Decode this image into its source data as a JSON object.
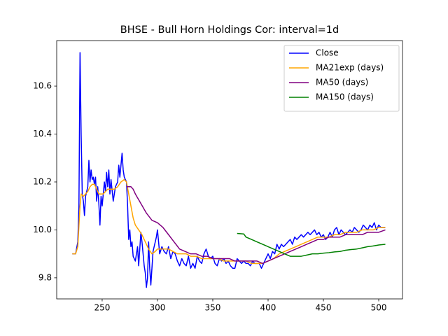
{
  "chart_data": {
    "type": "line",
    "title": "BHSE - Bull Horn Holdings Cor: interval=1d",
    "xlim": [
      208.9,
      521.5
    ],
    "ylim": [
      9.712,
      10.79
    ],
    "xticks": [
      250,
      300,
      350,
      400,
      450,
      500
    ],
    "yticks": [
      9.8,
      {
        "value": 10,
        "label": "10.0"
      },
      10.2,
      10.4,
      10.6
    ],
    "legend": "upper right",
    "series": [
      {
        "name": "Close",
        "color": "#0000ff",
        "x": [
          223,
          226,
          228,
          229,
          230,
          231,
          232,
          233,
          234,
          235,
          237,
          238,
          239,
          240,
          241,
          242,
          243,
          244,
          245,
          246,
          247,
          248,
          249,
          250,
          252,
          253,
          254,
          255,
          256,
          257,
          258,
          260,
          262,
          264,
          265,
          266,
          268,
          269,
          270,
          272,
          273,
          274,
          275,
          276,
          277,
          278,
          280,
          282,
          283,
          285,
          286,
          287,
          288,
          289,
          290,
          291,
          292,
          293,
          294,
          295,
          296,
          297,
          298,
          299,
          300,
          301,
          302,
          304,
          306,
          308,
          310,
          312,
          314,
          316,
          318,
          320,
          322,
          324,
          326,
          328,
          330,
          332,
          334,
          336,
          338,
          340,
          342,
          344,
          346,
          348,
          350,
          352,
          354,
          356,
          358,
          360,
          362,
          364,
          366,
          368,
          370,
          372,
          374,
          376,
          378,
          380,
          382,
          384,
          386,
          388,
          390,
          392,
          394,
          396,
          398,
          400,
          402,
          404,
          406,
          408,
          410,
          412,
          414,
          416,
          418,
          420,
          422,
          424,
          426,
          428,
          430,
          432,
          434,
          436,
          438,
          440,
          442,
          444,
          446,
          448,
          450,
          452,
          454,
          456,
          458,
          460,
          462,
          464,
          466,
          468,
          470,
          472,
          474,
          476,
          478,
          480,
          482,
          484,
          486,
          488,
          490,
          492,
          494,
          496,
          498,
          500,
          502,
          504,
          506
        ],
        "values": [
          9.9,
          9.9,
          9.95,
          10.1,
          10.74,
          10.4,
          10.15,
          10.12,
          10.06,
          10.14,
          10.18,
          10.29,
          10.2,
          10.25,
          10.21,
          10.22,
          10.19,
          10.22,
          10.12,
          10.18,
          10.11,
          10.02,
          10.14,
          10.1,
          10.2,
          10.16,
          10.24,
          10.18,
          10.25,
          10.15,
          10.21,
          10.12,
          10.18,
          10.2,
          10.27,
          10.22,
          10.32,
          10.25,
          10.22,
          10.2,
          10.1,
          9.96,
          10.0,
          9.93,
          9.95,
          9.89,
          9.87,
          9.93,
          9.85,
          9.99,
          9.95,
          9.9,
          9.85,
          9.82,
          9.76,
          9.8,
          9.95,
          9.84,
          9.77,
          9.84,
          9.91,
          9.93,
          9.95,
          9.97,
          10.0,
          9.95,
          9.9,
          9.93,
          9.91,
          9.9,
          9.93,
          9.88,
          9.91,
          9.9,
          9.87,
          9.85,
          9.88,
          9.86,
          9.85,
          9.89,
          9.84,
          9.86,
          9.84,
          9.89,
          9.87,
          9.86,
          9.9,
          9.92,
          9.89,
          9.88,
          9.89,
          9.86,
          9.85,
          9.88,
          9.87,
          9.88,
          9.86,
          9.87,
          9.85,
          9.84,
          9.84,
          9.88,
          9.87,
          9.86,
          9.87,
          9.86,
          9.86,
          9.85,
          9.87,
          9.86,
          9.86,
          9.86,
          9.84,
          9.86,
          9.88,
          9.9,
          9.88,
          9.91,
          9.9,
          9.94,
          9.92,
          9.94,
          9.93,
          9.94,
          9.95,
          9.96,
          9.94,
          9.97,
          9.96,
          9.97,
          9.98,
          9.97,
          9.98,
          9.99,
          9.98,
          9.99,
          10.0,
          9.98,
          9.99,
          9.97,
          9.98,
          9.96,
          9.97,
          9.99,
          9.97,
          10.0,
          10.01,
          9.98,
          10.0,
          9.99,
          9.98,
          9.99,
          10.0,
          9.99,
          10.01,
          10.0,
          9.99,
          10.0,
          10.02,
          10.01,
          10.0,
          10.02,
          10.01,
          10.03,
          10.0,
          10.02,
          10.01,
          10.01,
          10.01
        ]
      },
      {
        "name": "MA21exp (days)",
        "color": "#ffa500",
        "x": [
          223,
          226,
          228,
          230,
          231,
          233,
          235,
          237,
          239,
          241,
          243,
          245,
          247,
          249,
          251,
          253,
          255,
          258,
          261,
          264,
          267,
          270,
          272,
          274,
          276,
          278,
          280,
          283,
          286,
          289,
          292,
          295,
          298,
          300,
          303,
          306,
          310,
          314,
          318,
          322,
          326,
          330,
          335,
          340,
          345,
          350,
          355,
          360,
          365,
          370,
          375,
          380,
          385,
          390,
          395,
          400,
          405,
          410,
          415,
          420,
          425,
          430,
          435,
          440,
          445,
          450,
          455,
          460,
          465,
          470,
          475,
          480,
          485,
          490,
          495,
          500,
          506
        ],
        "values": [
          9.9,
          9.9,
          9.93,
          10.1,
          10.15,
          10.14,
          10.15,
          10.16,
          10.18,
          10.19,
          10.19,
          10.17,
          10.15,
          10.15,
          10.15,
          10.16,
          10.17,
          10.17,
          10.17,
          10.18,
          10.2,
          10.21,
          10.2,
          10.15,
          10.1,
          10.05,
          10.02,
          10.0,
          9.98,
          9.95,
          9.92,
          9.9,
          9.91,
          9.92,
          9.92,
          9.92,
          9.92,
          9.91,
          9.9,
          9.9,
          9.9,
          9.89,
          9.89,
          9.88,
          9.88,
          9.88,
          9.88,
          9.87,
          9.87,
          9.87,
          9.87,
          9.87,
          9.86,
          9.86,
          9.86,
          9.87,
          9.88,
          9.9,
          9.91,
          9.92,
          9.93,
          9.94,
          9.95,
          9.96,
          9.97,
          9.97,
          9.97,
          9.98,
          9.98,
          9.99,
          9.99,
          9.99,
          10.0,
          10.0,
          10.0,
          10.01,
          10.01
        ]
      },
      {
        "name": "MA50 (days)",
        "color": "#800080",
        "x": [
          272,
          276,
          278,
          280,
          285,
          290,
          295,
          300,
          305,
          310,
          315,
          320,
          325,
          330,
          335,
          340,
          345,
          350,
          355,
          360,
          365,
          370,
          375,
          380,
          385,
          390,
          395,
          400,
          405,
          410,
          415,
          420,
          425,
          430,
          435,
          440,
          445,
          450,
          455,
          460,
          465,
          470,
          475,
          480,
          485,
          490,
          495,
          500,
          506
        ],
        "values": [
          10.18,
          10.18,
          10.17,
          10.15,
          10.11,
          10.07,
          10.04,
          10.03,
          10.01,
          9.98,
          9.95,
          9.92,
          9.91,
          9.9,
          9.9,
          9.89,
          9.89,
          9.88,
          9.88,
          9.88,
          9.88,
          9.87,
          9.87,
          9.87,
          9.87,
          9.87,
          9.86,
          9.87,
          9.88,
          9.89,
          9.9,
          9.91,
          9.92,
          9.93,
          9.94,
          9.95,
          9.96,
          9.96,
          9.97,
          9.97,
          9.97,
          9.98,
          9.98,
          9.98,
          9.98,
          9.99,
          9.99,
          9.99,
          10.0
        ]
      },
      {
        "name": "MA150 (days)",
        "color": "#008000",
        "x": [
          372,
          378,
          380,
          385,
          390,
          395,
          400,
          405,
          410,
          415,
          420,
          425,
          430,
          435,
          440,
          445,
          450,
          455,
          460,
          465,
          470,
          475,
          480,
          485,
          490,
          495,
          500,
          506
        ],
        "values": [
          9.985,
          9.983,
          9.97,
          9.96,
          9.95,
          9.94,
          9.93,
          9.92,
          9.91,
          9.9,
          9.89,
          9.89,
          9.89,
          9.895,
          9.9,
          9.9,
          9.903,
          9.905,
          9.908,
          9.91,
          9.915,
          9.918,
          9.92,
          9.925,
          9.93,
          9.933,
          9.937,
          9.94
        ]
      }
    ]
  }
}
